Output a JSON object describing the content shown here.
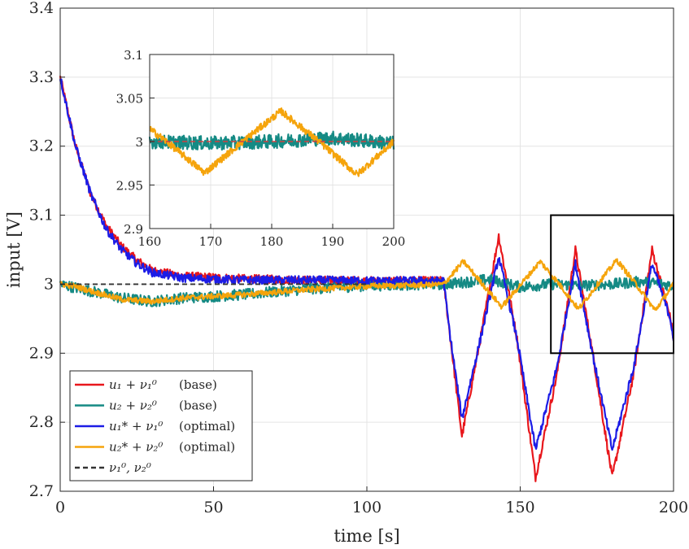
{
  "chart_data": {
    "type": "line",
    "xlabel": "time [s]",
    "ylabel": "input [V]",
    "xlim": [
      0,
      200
    ],
    "ylim": [
      2.7,
      3.4
    ],
    "xticks": [
      "0",
      "50",
      "100",
      "150",
      "200"
    ],
    "yticks": [
      "2.7",
      "2.8",
      "2.9",
      "3",
      "3.1",
      "3.2",
      "3.3",
      "3.4"
    ],
    "grid": true,
    "legend_position": "bottom-left",
    "series": [
      {
        "name": "u1_base",
        "color": "#e8171c",
        "legend_main": "u₁ + ν₁⁰",
        "legend_tag": "(base)",
        "x": [
          0,
          5,
          10,
          15,
          20,
          25,
          30,
          40,
          60,
          80,
          100,
          120,
          125,
          127,
          131,
          137,
          143,
          149,
          155,
          162,
          168,
          174,
          180,
          187,
          193,
          199,
          200
        ],
        "y": [
          3.3,
          3.2,
          3.13,
          3.085,
          3.055,
          3.035,
          3.02,
          3.012,
          3.008,
          3.006,
          3.005,
          3.005,
          3.005,
          2.93,
          2.78,
          2.92,
          3.07,
          2.92,
          2.72,
          2.87,
          3.05,
          2.89,
          2.72,
          2.87,
          3.05,
          2.95,
          2.92
        ]
      },
      {
        "name": "u2_base",
        "color": "#158a84",
        "legend_main": "u₂ + ν₂⁰",
        "legend_tag": "(base)",
        "x": [
          0,
          5,
          10,
          20,
          30,
          40,
          60,
          80,
          100,
          120,
          125,
          130,
          140,
          150,
          160,
          170,
          180,
          190,
          200
        ],
        "y": [
          3.0,
          2.995,
          2.99,
          2.98,
          2.975,
          2.98,
          2.985,
          2.993,
          2.998,
          3.0,
          3.0,
          3.002,
          3.007,
          2.996,
          3.0,
          2.998,
          3.0,
          3.004,
          2.998
        ]
      },
      {
        "name": "u1_optimal",
        "color": "#1c1ce6",
        "legend_main": "u₁* + ν₁⁰",
        "legend_tag": "(optimal)",
        "x": [
          0,
          5,
          10,
          15,
          20,
          25,
          30,
          40,
          60,
          80,
          100,
          120,
          125,
          127,
          131,
          137,
          143,
          149,
          155,
          162,
          168,
          174,
          180,
          187,
          193,
          199,
          200
        ],
        "y": [
          3.3,
          3.2,
          3.13,
          3.08,
          3.05,
          3.03,
          3.017,
          3.009,
          3.006,
          3.006,
          3.005,
          3.005,
          3.005,
          2.93,
          2.805,
          2.92,
          3.04,
          2.92,
          2.76,
          2.88,
          3.03,
          2.89,
          2.76,
          2.88,
          3.03,
          2.95,
          2.92
        ]
      },
      {
        "name": "u2_optimal",
        "color": "#f5a40c",
        "legend_main": "u₂* + ν₂⁰",
        "legend_tag": "(optimal)",
        "x": [
          0,
          5,
          10,
          20,
          30,
          40,
          60,
          80,
          100,
          120,
          125,
          131.5,
          137.75,
          144,
          150.25,
          156.5,
          162.75,
          169,
          175.25,
          181.5,
          187.75,
          194,
          200
        ],
        "y": [
          3.0,
          2.997,
          2.99,
          2.978,
          2.975,
          2.98,
          2.985,
          2.992,
          2.997,
          2.999,
          3.0,
          3.033,
          3.0,
          2.967,
          3.0,
          3.033,
          3.0,
          2.964,
          3.0,
          3.035,
          3.0,
          2.962,
          3.0
        ]
      },
      {
        "name": "nu_reference",
        "color": "#333333",
        "dashed": true,
        "legend_main": "ν₁⁰, ν₂⁰",
        "legend_tag": "",
        "x": [
          0,
          100
        ],
        "y": [
          3.0,
          3.0
        ]
      }
    ],
    "zoom_box": {
      "x": [
        160,
        200
      ],
      "y": [
        2.9,
        3.1
      ]
    },
    "inset": {
      "xlim": [
        160,
        200
      ],
      "ylim": [
        2.9,
        3.1
      ],
      "xticks": [
        "160",
        "170",
        "180",
        "190",
        "200"
      ],
      "yticks": [
        "2.9",
        "2.95",
        "3",
        "3.05",
        "3.1"
      ]
    }
  }
}
